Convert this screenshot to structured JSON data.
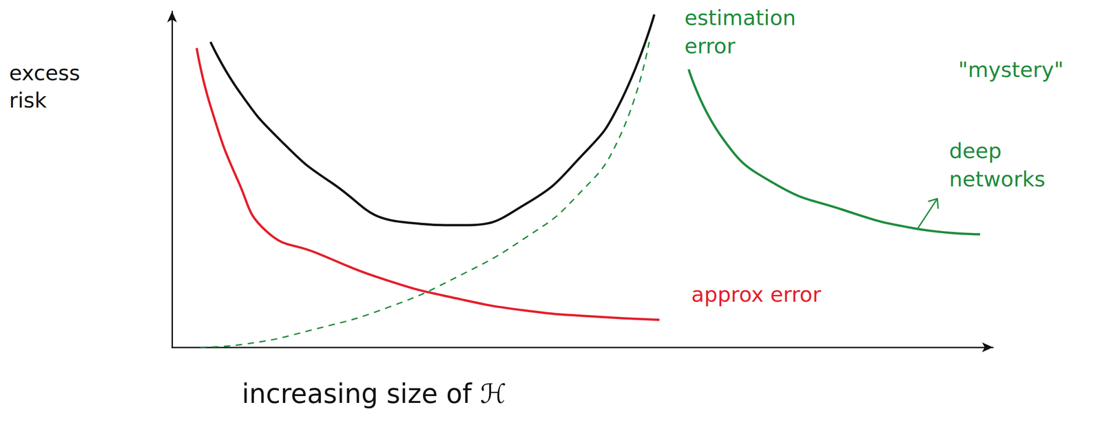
{
  "chart_data": {
    "type": "line",
    "ylabel": "excess risk",
    "xlabel": "increasing size of ℋ",
    "xlim": [
      0,
      160
    ],
    "ylim": [
      0,
      110
    ],
    "tick_labels": false,
    "grid": false,
    "series": [
      {
        "color": "#111111",
        "line_style": "solid",
        "x": [
          7.5,
          13,
          21,
          31,
          45,
          57,
          69,
          80,
          87,
          94
        ],
        "values": [
          100,
          84,
          68,
          54,
          41,
          40,
          47,
          63,
          79,
          109
        ]
      },
      {
        "name": "approx error",
        "color": "#e41e2b",
        "line_style": "solid",
        "x": [
          4.8,
          7.5,
          13,
          18.4,
          28,
          41.8,
          55.5,
          69,
          83,
          95
        ],
        "values": [
          98,
          79,
          54,
          38,
          31,
          22,
          16,
          12,
          10,
          9
        ]
      },
      {
        "name": "estimation error",
        "color": "#1e8c3c",
        "line_style": "dashed",
        "x": [
          5.5,
          14,
          28,
          42,
          55.5,
          69,
          78.6,
          87,
          93
        ],
        "values": [
          0,
          1,
          6,
          13,
          23,
          36,
          49,
          68,
          100
        ]
      },
      {
        "name": "deep networks",
        "color": "#1e8c3c",
        "line_style": "solid",
        "x": [
          100.7,
          107.5,
          117,
          130.8,
          144.5,
          157.5
        ],
        "values": [
          91,
          68,
          54,
          45,
          39,
          37
        ]
      }
    ],
    "annotations": [
      {
        "text": "\"mystery\"",
        "color": "#1e8c3c"
      }
    ]
  }
}
